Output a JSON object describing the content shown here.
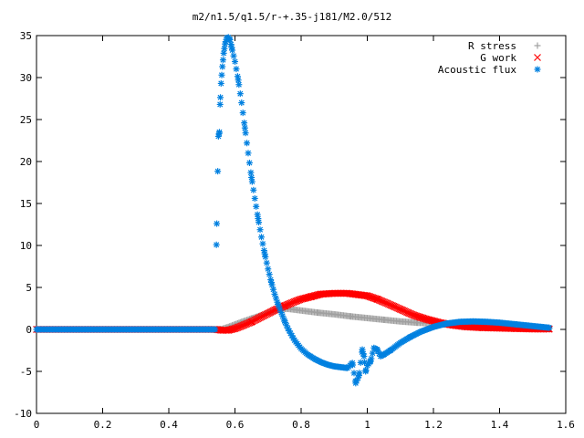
{
  "chart_data": {
    "type": "scatter",
    "title": "m2/n1.5/q1.5/r-+.35-j181/M2.0/512",
    "xlabel": "",
    "ylabel": "",
    "xlim": [
      0,
      1.6
    ],
    "ylim": [
      -10,
      35
    ],
    "x_ticks": [
      "0",
      "0.2",
      "0.4",
      "0.6",
      "0.8",
      "1",
      "1.2",
      "1.4",
      "1.6"
    ],
    "y_ticks": [
      "-10",
      "-5",
      "0",
      "5",
      "10",
      "15",
      "20",
      "25",
      "30",
      "35"
    ],
    "grid": false,
    "legend_position": "top-right",
    "series": [
      {
        "name": "R stress",
        "marker": "plus",
        "color": "#a0a0a0",
        "points": [
          [
            0.0,
            0
          ],
          [
            0.2,
            0
          ],
          [
            0.4,
            0
          ],
          [
            0.54,
            0
          ],
          [
            0.56,
            0.05
          ],
          [
            0.58,
            0.3
          ],
          [
            0.6,
            0.6
          ],
          [
            0.62,
            0.9
          ],
          [
            0.65,
            1.3
          ],
          [
            0.68,
            1.7
          ],
          [
            0.7,
            2.0
          ],
          [
            0.72,
            2.2
          ],
          [
            0.74,
            2.4
          ],
          [
            0.76,
            2.45
          ],
          [
            0.78,
            2.35
          ],
          [
            0.8,
            2.25
          ],
          [
            0.85,
            2.0
          ],
          [
            0.9,
            1.8
          ],
          [
            0.95,
            1.55
          ],
          [
            1.0,
            1.35
          ],
          [
            1.05,
            1.15
          ],
          [
            1.1,
            0.95
          ],
          [
            1.15,
            0.8
          ],
          [
            1.2,
            0.7
          ],
          [
            1.25,
            0.55
          ],
          [
            1.3,
            0.45
          ],
          [
            1.35,
            0.35
          ],
          [
            1.4,
            0.3
          ],
          [
            1.45,
            0.2
          ],
          [
            1.5,
            0.15
          ],
          [
            1.55,
            0.1
          ]
        ]
      },
      {
        "name": "G work",
        "marker": "cross",
        "color": "#ff0000",
        "points": [
          [
            0.0,
            0
          ],
          [
            0.2,
            0
          ],
          [
            0.4,
            0
          ],
          [
            0.54,
            0
          ],
          [
            0.56,
            -0.1
          ],
          [
            0.58,
            -0.1
          ],
          [
            0.6,
            0.1
          ],
          [
            0.62,
            0.4
          ],
          [
            0.65,
            0.9
          ],
          [
            0.68,
            1.5
          ],
          [
            0.7,
            1.9
          ],
          [
            0.72,
            2.3
          ],
          [
            0.75,
            2.8
          ],
          [
            0.78,
            3.3
          ],
          [
            0.8,
            3.6
          ],
          [
            0.83,
            3.9
          ],
          [
            0.86,
            4.2
          ],
          [
            0.9,
            4.3
          ],
          [
            0.94,
            4.3
          ],
          [
            0.98,
            4.1
          ],
          [
            1.0,
            4.0
          ],
          [
            1.03,
            3.6
          ],
          [
            1.06,
            3.1
          ],
          [
            1.1,
            2.4
          ],
          [
            1.14,
            1.7
          ],
          [
            1.18,
            1.2
          ],
          [
            1.22,
            0.8
          ],
          [
            1.26,
            0.5
          ],
          [
            1.3,
            0.3
          ],
          [
            1.35,
            0.2
          ],
          [
            1.4,
            0.15
          ],
          [
            1.45,
            0.1
          ],
          [
            1.5,
            0.05
          ],
          [
            1.55,
            0.05
          ]
        ]
      },
      {
        "name": "Acoustic flux",
        "marker": "star",
        "color": "#0080e0",
        "points": [
          [
            0.0,
            0
          ],
          [
            0.2,
            0
          ],
          [
            0.4,
            0
          ],
          [
            0.54,
            0
          ],
          [
            0.545,
            12.6
          ],
          [
            0.55,
            23.0
          ],
          [
            0.553,
            23.5
          ],
          [
            0.555,
            26.8
          ],
          [
            0.558,
            29.3
          ],
          [
            0.562,
            31.3
          ],
          [
            0.566,
            32.9
          ],
          [
            0.57,
            34.0
          ],
          [
            0.575,
            34.7
          ],
          [
            0.58,
            34.8
          ],
          [
            0.585,
            34.5
          ],
          [
            0.59,
            33.6
          ],
          [
            0.6,
            31.9
          ],
          [
            0.61,
            29.7
          ],
          [
            0.62,
            27.0
          ],
          [
            0.63,
            24.0
          ],
          [
            0.64,
            21.0
          ],
          [
            0.65,
            18.1
          ],
          [
            0.66,
            15.6
          ],
          [
            0.67,
            13.2
          ],
          [
            0.68,
            11.0
          ],
          [
            0.69,
            9.0
          ],
          [
            0.7,
            7.2
          ],
          [
            0.71,
            5.6
          ],
          [
            0.72,
            4.2
          ],
          [
            0.73,
            3.0
          ],
          [
            0.74,
            2.0
          ],
          [
            0.75,
            1.0
          ],
          [
            0.76,
            0.1
          ],
          [
            0.78,
            -1.3
          ],
          [
            0.8,
            -2.3
          ],
          [
            0.82,
            -3.0
          ],
          [
            0.84,
            -3.5
          ],
          [
            0.86,
            -3.9
          ],
          [
            0.88,
            -4.2
          ],
          [
            0.9,
            -4.4
          ],
          [
            0.92,
            -4.5
          ],
          [
            0.94,
            -4.6
          ],
          [
            0.955,
            -4.0
          ],
          [
            0.965,
            -6.4
          ],
          [
            0.975,
            -5.5
          ],
          [
            0.985,
            -2.4
          ],
          [
            0.99,
            -3.2
          ],
          [
            0.995,
            -5.0
          ],
          [
            1.0,
            -4.3
          ],
          [
            1.01,
            -3.8
          ],
          [
            1.02,
            -2.2
          ],
          [
            1.03,
            -2.4
          ],
          [
            1.04,
            -3.2
          ],
          [
            1.05,
            -3.0
          ],
          [
            1.07,
            -2.5
          ],
          [
            1.1,
            -1.6
          ],
          [
            1.13,
            -0.9
          ],
          [
            1.16,
            -0.3
          ],
          [
            1.2,
            0.3
          ],
          [
            1.24,
            0.7
          ],
          [
            1.28,
            0.9
          ],
          [
            1.32,
            0.95
          ],
          [
            1.36,
            0.9
          ],
          [
            1.4,
            0.8
          ],
          [
            1.45,
            0.6
          ],
          [
            1.5,
            0.4
          ],
          [
            1.55,
            0.2
          ]
        ]
      }
    ]
  }
}
